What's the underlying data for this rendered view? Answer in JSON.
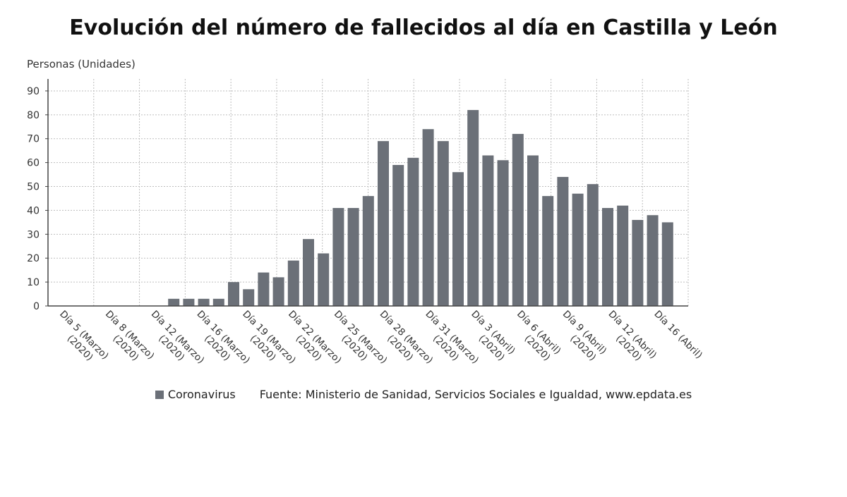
{
  "chart_data": {
    "type": "bar",
    "title": "Evolución del número de fallecidos al día en Castilla y León",
    "ylabel": "Personas (Unidades)",
    "xlabel": "",
    "ylim": [
      0,
      95
    ],
    "yticks": [
      0,
      10,
      20,
      30,
      40,
      50,
      60,
      70,
      80,
      90
    ],
    "grid": true,
    "legend_position": "bottom",
    "x_tick_labels": [
      {
        "line1": "Día 5 (Marzo)",
        "line2": "(2020)"
      },
      {
        "line1": "Día 8 (Marzo)",
        "line2": "(2020)"
      },
      {
        "line1": "Día 12 (Marzo)",
        "line2": "(2020)"
      },
      {
        "line1": "Día 16 (Marzo)",
        "line2": "(2020)"
      },
      {
        "line1": "Día 19 (Marzo)",
        "line2": "(2020)"
      },
      {
        "line1": "Día 22 (Marzo)",
        "line2": "(2020)"
      },
      {
        "line1": "Día 25 (Marzo)",
        "line2": "(2020)"
      },
      {
        "line1": "Día 28 (Marzo)",
        "line2": "(2020)"
      },
      {
        "line1": "Día 31 (Marzo)",
        "line2": "(2020)"
      },
      {
        "line1": "Día 3 (Abril)",
        "line2": "(2020)"
      },
      {
        "line1": "Día 6 (Abril)",
        "line2": "(2020)"
      },
      {
        "line1": "Día 9 (Abril)",
        "line2": "(2020)"
      },
      {
        "line1": "Día 12 (Abril)",
        "line2": "(2020)"
      },
      {
        "line1": "Día 16 (Abril)",
        "line2": ""
      }
    ],
    "series": [
      {
        "name": "Coronavirus",
        "color": "#6b7078",
        "values": [
          0,
          0,
          0,
          0,
          0,
          0,
          0,
          0,
          3,
          3,
          3,
          3,
          10,
          7,
          14,
          12,
          19,
          28,
          22,
          41,
          41,
          46,
          69,
          59,
          62,
          74,
          69,
          56,
          82,
          63,
          61,
          72,
          63,
          46,
          54,
          47,
          51,
          41,
          42,
          36,
          38,
          35
        ]
      }
    ],
    "source": "Fuente: Ministerio de Sanidad, Servicios Sociales e Igualdad, www.epdata.es"
  }
}
